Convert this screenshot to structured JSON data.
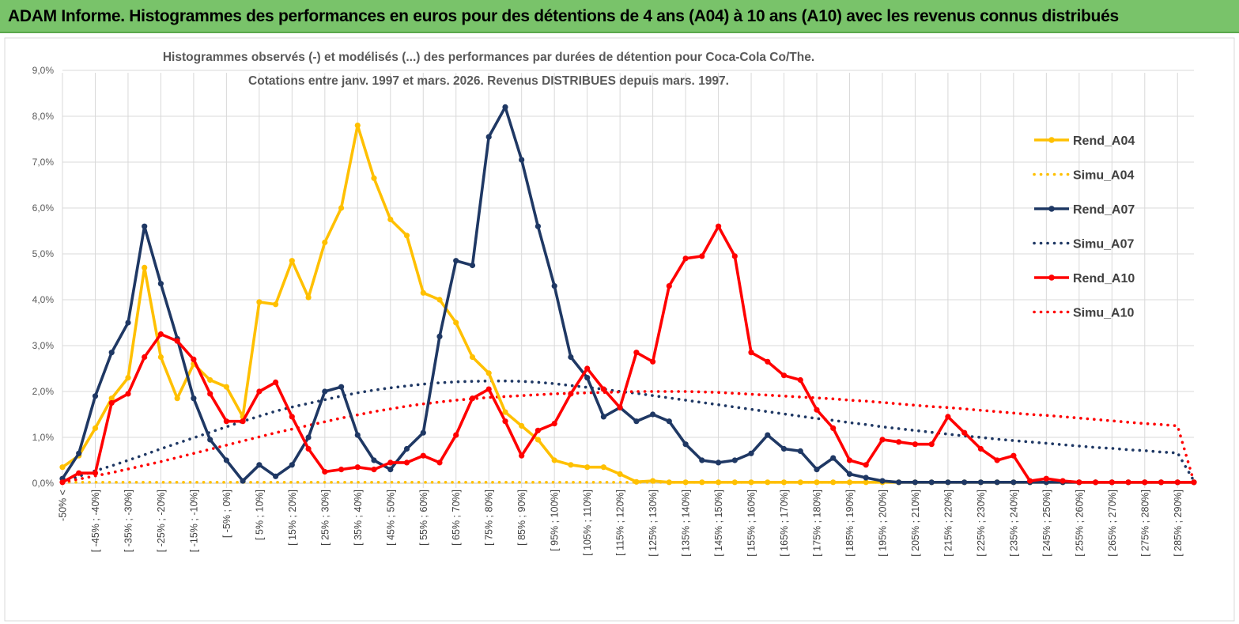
{
  "header": {
    "title": "ADAM Informe. Histogrammes des performances en euros pour des détentions de 4 ans (A04) à 10 ans (A10) avec les revenus connus distribués"
  },
  "colors": {
    "banner": "#79c36a",
    "A04": "#ffc000",
    "A07": "#1f3864",
    "A10": "#ff0000"
  },
  "chart_data": {
    "type": "line",
    "title_lines": [
      "Histogrammes observés (-)  et modélisés (...) des performances par durées de détention pour Coca-Cola Co/The.",
      "Cotations entre janv. 1997 et mars. 2026. Revenus DISTRIBUES depuis mars. 1997."
    ],
    "ylim": [
      0,
      9
    ],
    "yticks": [
      "0,0%",
      "1,0%",
      "2,0%",
      "3,0%",
      "4,0%",
      "5,0%",
      "6,0%",
      "7,0%",
      "8,0%",
      "9,0%"
    ],
    "grid": true,
    "legend_position": "top-right",
    "x_labels": [
      "-50% <",
      "[ -45% ; -40%]",
      "[ -35% ; -30%]",
      "[ -25% ; -20%]",
      "[ -15% ; -10%]",
      "[ -5% ; 0%]",
      "[ 5% ; 10%]",
      "[ 15% ; 20%]",
      "[ 25% ; 30%]",
      "[ 35% ; 40%]",
      "[ 45% ; 50%]",
      "[ 55% ; 60%]",
      "[ 65% ; 70%]",
      "[ 75% ; 80%]",
      "[ 85% ; 90%]",
      "[ 95% ; 100%]",
      "[ 105% ; 110%]",
      "[ 115% ; 120%]",
      "[ 125% ; 130%]",
      "[ 135% ; 140%]",
      "[ 145% ; 150%]",
      "[ 155% ; 160%]",
      "[ 165% ; 170%]",
      "[ 175% ; 180%]",
      "[ 185% ; 190%]",
      "[ 195% ; 200%]",
      "[ 205% ; 210%]",
      "[ 215% ; 220%]",
      "[ 225% ; 230%]",
      "[ 235% ; 240%]",
      "[ 245% ; 250%]",
      "[ 255% ; 260%]",
      "[ 265% ; 270%]",
      "[ 275% ; 280%]",
      "[ 285% ; 290%]"
    ],
    "series": [
      {
        "name": "Rend_A04",
        "style": "solid",
        "color": "#ffc000",
        "values": [
          0.35,
          0.6,
          1.2,
          1.85,
          2.3,
          4.7,
          2.75,
          1.85,
          2.6,
          2.25,
          2.1,
          1.45,
          3.95,
          3.9,
          4.85,
          4.05,
          5.25,
          6.0,
          7.8,
          6.65,
          5.75,
          5.4,
          4.15,
          4.0,
          3.5,
          2.75,
          2.4,
          1.55,
          1.25,
          0.95,
          0.5,
          0.4,
          0.35,
          0.35,
          0.2,
          0.03,
          0.05,
          0.02,
          0.02,
          0.02,
          0.02,
          0.02,
          0.02,
          0.02,
          0.02,
          0.02,
          0.02,
          0.02,
          0.02,
          0.02,
          0.02,
          0.02,
          0.02,
          0.02,
          0.02,
          0.02,
          0.02,
          0.02,
          0.02,
          0.02,
          0.02,
          0.02,
          0.02,
          0.02,
          0.02,
          0.02,
          0.02,
          0.02,
          0.02,
          0.02
        ]
      },
      {
        "name": "Simu_A04",
        "style": "dotted",
        "color": "#ffc000",
        "values": [
          0.02,
          0.02,
          0.02,
          0.02,
          0.02,
          0.02,
          0.02,
          0.02,
          0.02,
          0.02,
          0.02,
          0.02,
          0.02,
          0.02,
          0.02,
          0.02,
          0.02,
          0.02,
          0.02,
          0.02,
          0.02,
          0.02,
          0.02,
          0.02,
          0.02,
          0.02,
          0.02,
          0.02,
          0.02,
          0.02,
          0.02,
          0.02,
          0.02,
          0.02,
          0.02,
          0.02,
          0.02,
          0.02,
          0.02,
          0.02,
          0.02,
          0.02,
          0.02,
          0.02,
          0.02,
          0.02,
          0.02,
          0.02,
          0.02,
          0.02,
          0.02,
          0.02,
          0.02,
          0.02,
          0.02,
          0.02,
          0.02,
          0.02,
          0.02,
          0.02,
          0.02,
          0.02,
          0.02,
          0.02,
          0.02,
          0.02,
          0.02,
          0.02,
          0.02,
          0.02
        ]
      },
      {
        "name": "Rend_A07",
        "style": "solid",
        "color": "#1f3864",
        "values": [
          0.1,
          0.65,
          1.9,
          2.85,
          3.5,
          5.6,
          4.35,
          3.15,
          1.85,
          0.95,
          0.5,
          0.05,
          0.4,
          0.15,
          0.4,
          1.0,
          2.0,
          2.1,
          1.05,
          0.5,
          0.3,
          0.75,
          1.1,
          3.2,
          4.85,
          4.75,
          7.55,
          8.2,
          7.05,
          5.6,
          4.3,
          2.75,
          2.3,
          1.45,
          1.65,
          1.35,
          1.5,
          1.35,
          0.85,
          0.5,
          0.45,
          0.5,
          0.65,
          1.05,
          0.75,
          0.7,
          0.3,
          0.55,
          0.2,
          0.12,
          0.05,
          0.02,
          0.02,
          0.02,
          0.02,
          0.02,
          0.02,
          0.02,
          0.02,
          0.02,
          0.02,
          0.02,
          0.02,
          0.02,
          0.02,
          0.02,
          0.02,
          0.02,
          0.02,
          0.02
        ]
      },
      {
        "name": "Simu_A07",
        "style": "dotted",
        "color": "#1f3864",
        "values": [
          0.02,
          0.15,
          0.27,
          0.38,
          0.5,
          0.62,
          0.75,
          0.87,
          0.99,
          1.11,
          1.23,
          1.35,
          1.46,
          1.57,
          1.66,
          1.74,
          1.82,
          1.9,
          1.97,
          2.03,
          2.08,
          2.12,
          2.16,
          2.19,
          2.21,
          2.22,
          2.23,
          2.23,
          2.22,
          2.2,
          2.17,
          2.13,
          2.09,
          2.05,
          2.0,
          1.96,
          1.91,
          1.86,
          1.81,
          1.76,
          1.71,
          1.66,
          1.61,
          1.56,
          1.51,
          1.46,
          1.41,
          1.37,
          1.32,
          1.28,
          1.23,
          1.19,
          1.15,
          1.11,
          1.07,
          1.03,
          1.0,
          0.96,
          0.93,
          0.9,
          0.87,
          0.84,
          0.81,
          0.78,
          0.76,
          0.73,
          0.71,
          0.68,
          0.66,
          0.05
        ]
      },
      {
        "name": "Rend_A10",
        "style": "solid",
        "color": "#ff0000",
        "values": [
          0.02,
          0.22,
          0.22,
          1.75,
          1.95,
          2.75,
          3.25,
          3.1,
          2.7,
          1.95,
          1.35,
          1.35,
          2.0,
          2.2,
          1.45,
          0.75,
          0.25,
          0.3,
          0.35,
          0.3,
          0.45,
          0.45,
          0.6,
          0.45,
          1.05,
          1.85,
          2.05,
          1.35,
          0.6,
          1.15,
          1.3,
          1.95,
          2.5,
          2.05,
          1.65,
          2.85,
          2.65,
          4.3,
          4.9,
          4.95,
          5.6,
          4.95,
          2.85,
          2.65,
          2.35,
          2.25,
          1.6,
          1.2,
          0.5,
          0.4,
          0.95,
          0.9,
          0.85,
          0.85,
          1.45,
          1.1,
          0.75,
          0.5,
          0.6,
          0.05,
          0.1,
          0.05,
          0.02,
          0.02,
          0.02,
          0.02,
          0.02,
          0.02,
          0.02,
          0.02
        ]
      },
      {
        "name": "Simu_A10",
        "style": "dotted",
        "color": "#ff0000",
        "values": [
          0.02,
          0.09,
          0.16,
          0.23,
          0.31,
          0.39,
          0.47,
          0.56,
          0.65,
          0.74,
          0.83,
          0.92,
          1.01,
          1.1,
          1.18,
          1.26,
          1.34,
          1.42,
          1.49,
          1.56,
          1.62,
          1.68,
          1.73,
          1.77,
          1.81,
          1.84,
          1.87,
          1.89,
          1.91,
          1.93,
          1.95,
          1.96,
          1.97,
          1.98,
          1.99,
          2.0,
          2.0,
          2.0,
          2.0,
          1.99,
          1.98,
          1.96,
          1.94,
          1.92,
          1.9,
          1.88,
          1.86,
          1.84,
          1.81,
          1.79,
          1.76,
          1.73,
          1.7,
          1.67,
          1.65,
          1.62,
          1.59,
          1.56,
          1.53,
          1.5,
          1.48,
          1.45,
          1.42,
          1.39,
          1.36,
          1.33,
          1.3,
          1.28,
          1.25,
          0.03
        ]
      }
    ]
  }
}
